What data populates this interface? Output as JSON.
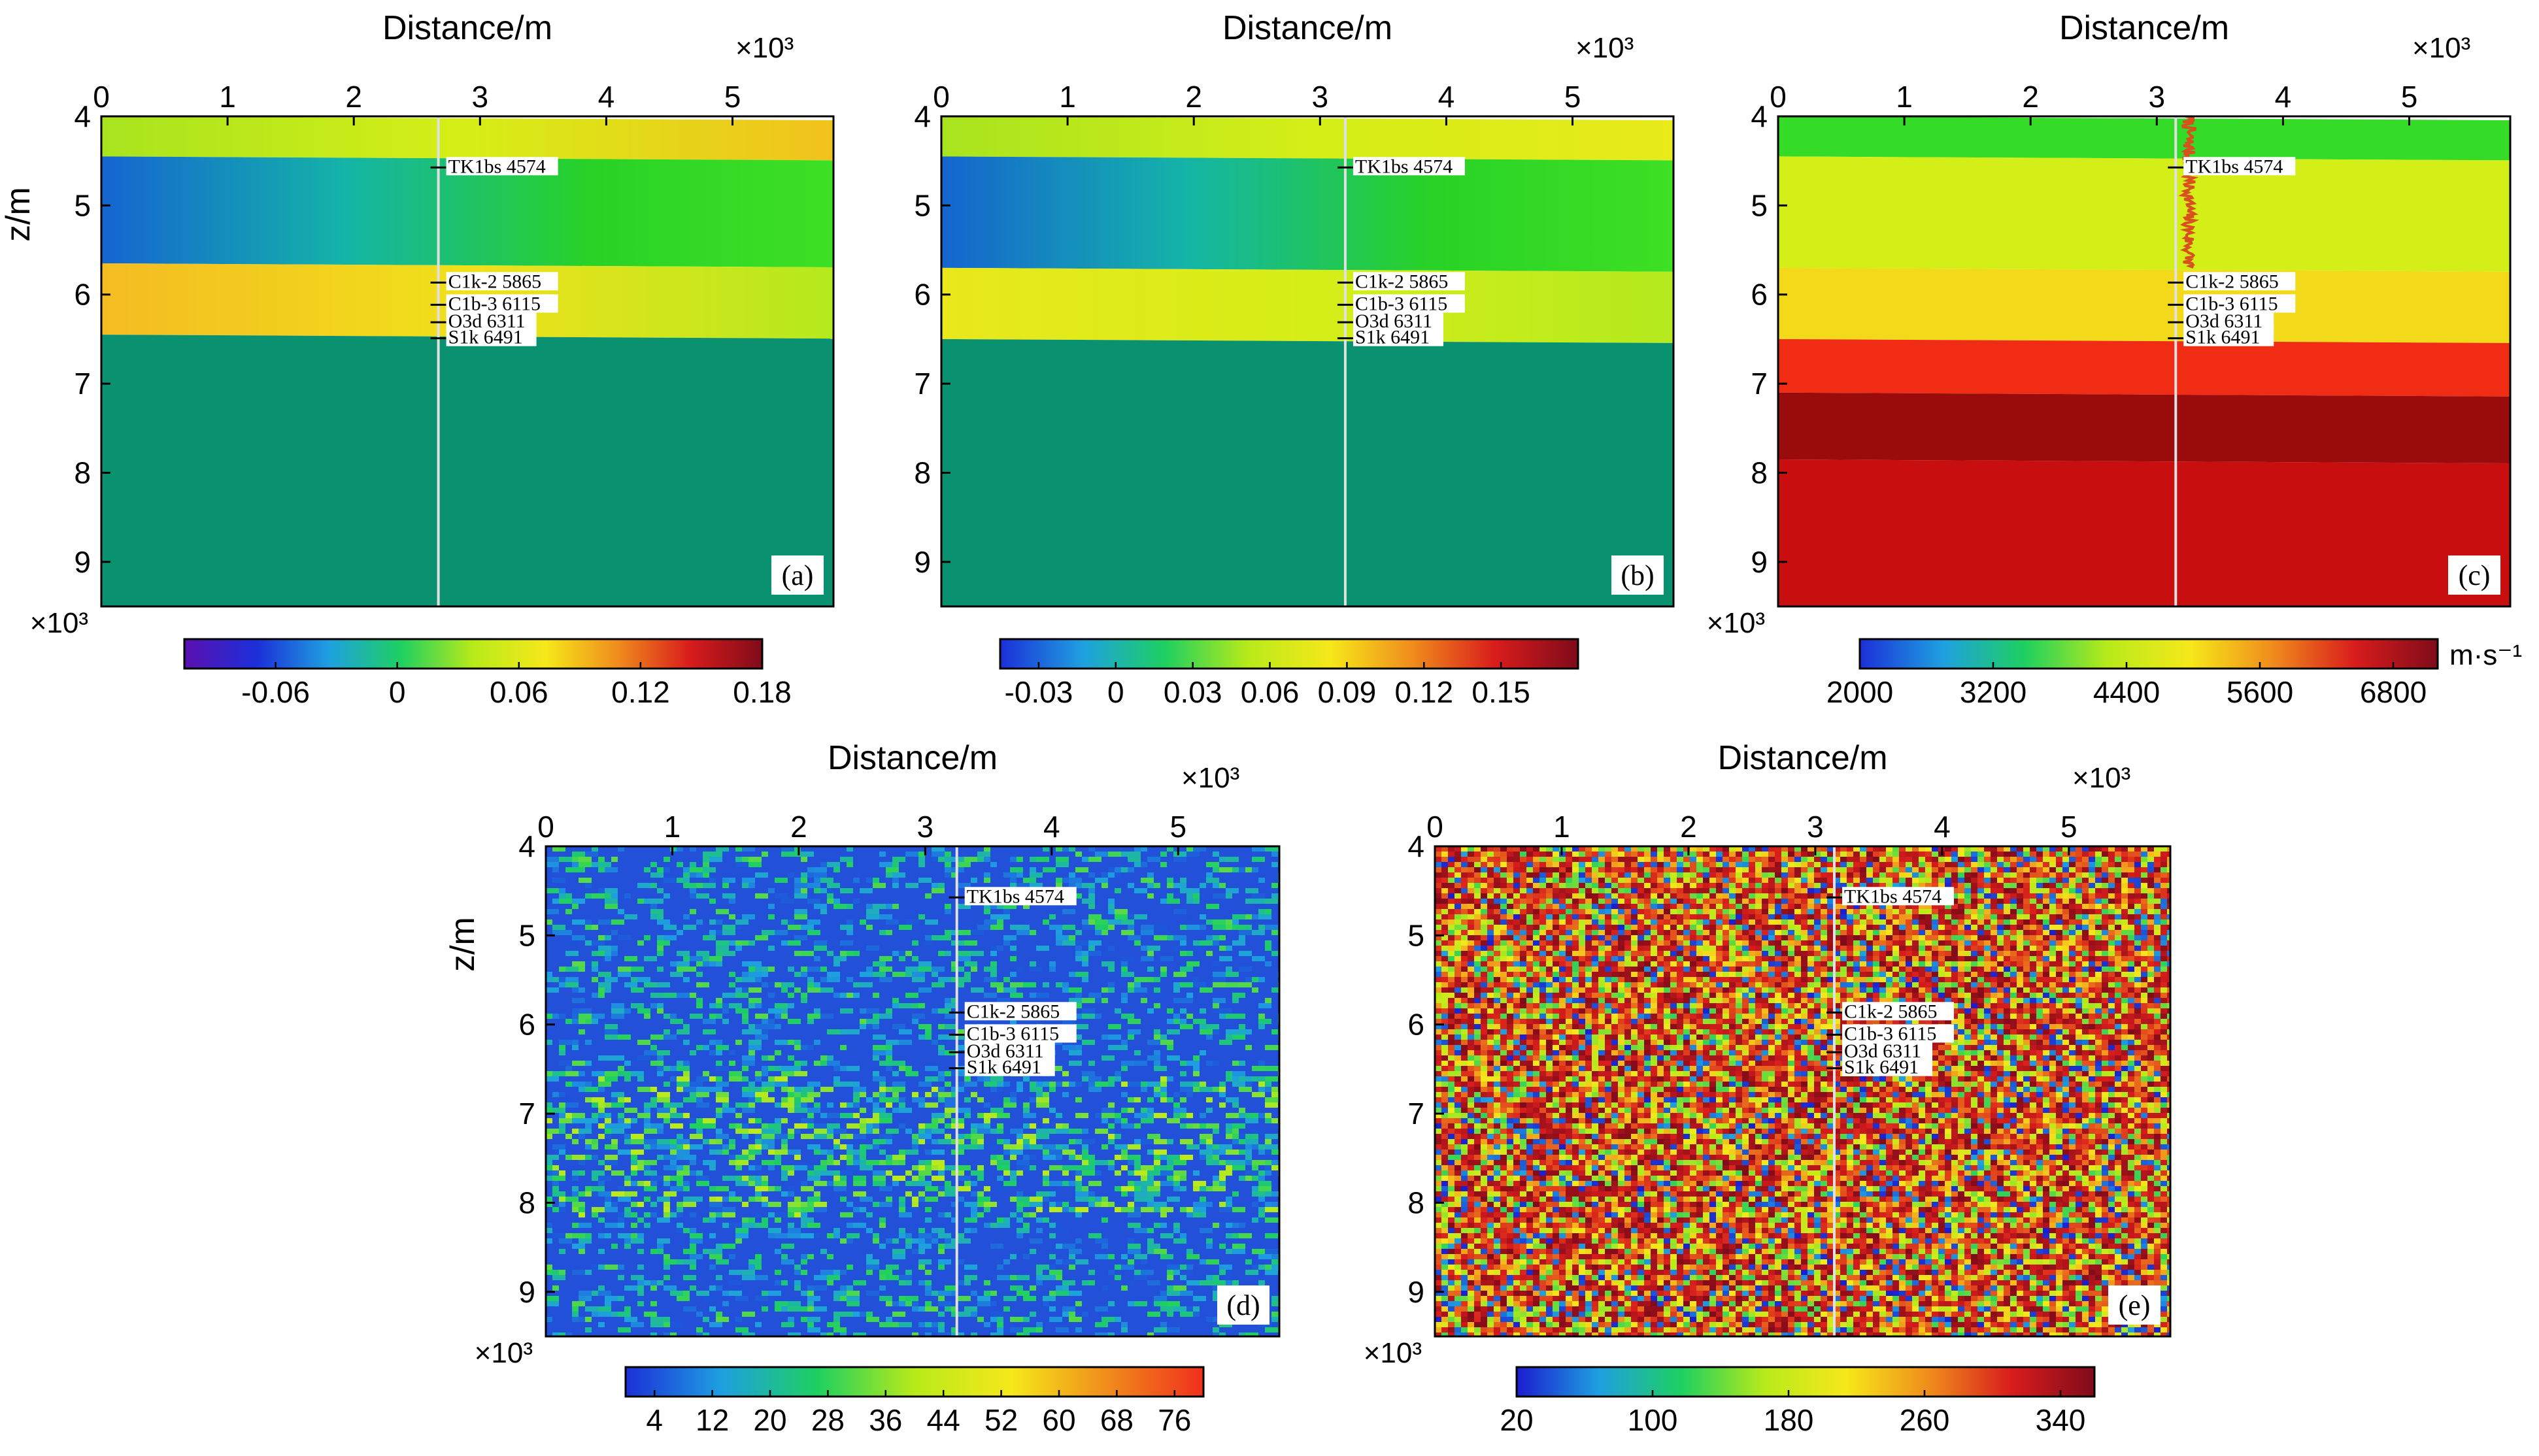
{
  "chart_data": [
    {
      "id": "a",
      "type": "heatmap",
      "panel_label": "(a)",
      "xlabel": "Distance/m",
      "x_multiplier": "×10³",
      "x_ticks": [
        "0",
        "1",
        "2",
        "3",
        "4",
        "5"
      ],
      "xlim": [
        0,
        5.8
      ],
      "ylabel": "z/m",
      "y_multiplier": "×10³",
      "y_ticks": [
        "4",
        "5",
        "6",
        "7",
        "8",
        "9"
      ],
      "ylim": [
        4,
        9.5
      ],
      "well_x": 2.67,
      "layers": [
        {
          "z_top": 4.0,
          "z_bottom": 4.45,
          "grad": [
            "#a8e41e",
            "#d6ee16",
            "#f2c21c"
          ]
        },
        {
          "z_top": 4.45,
          "z_bottom": 5.65,
          "grad": [
            "#1565d0",
            "#14b4a8",
            "#28d226",
            "#3ee024"
          ]
        },
        {
          "z_top": 5.65,
          "z_bottom": 6.45,
          "grad": [
            "#f4bc22",
            "#f0e01a",
            "#b4ea1e"
          ]
        },
        {
          "z_top": 6.45,
          "z_bottom": 9.5,
          "grad": [
            "#0a9170",
            "#0a9170"
          ]
        }
      ],
      "markers": [
        {
          "label": "TK1bs 4574",
          "z": 4.574
        },
        {
          "label": "C1k-2 5865",
          "z": 5.865
        },
        {
          "label": "C1b-3 6115",
          "z": 6.115
        },
        {
          "label": "O3d 6311",
          "z": 6.311
        },
        {
          "label": "S1k 6491",
          "z": 6.491
        }
      ],
      "colorbar": {
        "ticks": [
          "-0.06",
          "0",
          "0.06",
          "0.12",
          "0.18"
        ],
        "tick_values": [
          -0.06,
          0,
          0.06,
          0.12,
          0.18
        ],
        "range": [
          -0.105,
          0.18
        ],
        "colors": [
          "#5a10b0",
          "#1c2fd8",
          "#1ea0e0",
          "#1ed060",
          "#b8ea1a",
          "#f6e81a",
          "#f08c1c",
          "#d81c1c",
          "#800b1a"
        ],
        "unit": ""
      }
    },
    {
      "id": "b",
      "type": "heatmap",
      "panel_label": "(b)",
      "xlabel": "Distance/m",
      "x_multiplier": "×10³",
      "x_ticks": [
        "0",
        "1",
        "2",
        "3",
        "4",
        "5"
      ],
      "xlim": [
        0,
        5.8
      ],
      "ylabel": "",
      "y_multiplier": "",
      "y_ticks": [
        "4",
        "5",
        "6",
        "7",
        "8",
        "9"
      ],
      "ylim": [
        4,
        9.5
      ],
      "well_x": 3.2,
      "layers": [
        {
          "z_top": 4.0,
          "z_bottom": 4.45,
          "grad": [
            "#a8e41e",
            "#d4ee18",
            "#e8ea1a"
          ]
        },
        {
          "z_top": 4.45,
          "z_bottom": 5.7,
          "grad": [
            "#1565d0",
            "#14b4a8",
            "#28d226",
            "#3ee024"
          ]
        },
        {
          "z_top": 5.7,
          "z_bottom": 6.5,
          "grad": [
            "#e8e81c",
            "#d6ee18",
            "#b4ea1e"
          ]
        },
        {
          "z_top": 6.5,
          "z_bottom": 9.5,
          "grad": [
            "#0a9170",
            "#0a9170"
          ]
        }
      ],
      "markers": [
        {
          "label": "TK1bs 4574",
          "z": 4.574
        },
        {
          "label": "C1k-2 5865",
          "z": 5.865
        },
        {
          "label": "C1b-3 6115",
          "z": 6.115
        },
        {
          "label": "O3d 6311",
          "z": 6.311
        },
        {
          "label": "S1k 6491",
          "z": 6.491
        }
      ],
      "colorbar": {
        "ticks": [
          "-0.03",
          "0",
          "0.03",
          "0.06",
          "0.09",
          "0.12",
          "0.15"
        ],
        "tick_values": [
          -0.03,
          0,
          0.03,
          0.06,
          0.09,
          0.12,
          0.15
        ],
        "range": [
          -0.045,
          0.18
        ],
        "colors": [
          "#1c2fd8",
          "#1ea0e0",
          "#1ed060",
          "#b8ea1a",
          "#f6e81a",
          "#f08c1c",
          "#d81c1c",
          "#800b1a"
        ],
        "unit": ""
      }
    },
    {
      "id": "c",
      "type": "heatmap",
      "panel_label": "(c)",
      "xlabel": "Distance/m",
      "x_multiplier": "×10³",
      "x_ticks": [
        "0",
        "1",
        "2",
        "3",
        "4",
        "5"
      ],
      "xlim": [
        0,
        5.8
      ],
      "ylabel": "",
      "y_multiplier": "×10³",
      "y_ticks": [
        "4",
        "5",
        "6",
        "7",
        "8",
        "9"
      ],
      "ylim": [
        4,
        9.5
      ],
      "well_x": 3.15,
      "layers": [
        {
          "z_top": 4.0,
          "z_bottom": 4.45,
          "grad": [
            "#34dc28",
            "#34dc28"
          ]
        },
        {
          "z_top": 4.45,
          "z_bottom": 5.7,
          "grad": [
            "#d4ee18",
            "#d4ee18"
          ]
        },
        {
          "z_top": 5.7,
          "z_bottom": 6.5,
          "grad": [
            "#f2da1a",
            "#f2da1a"
          ]
        },
        {
          "z_top": 6.5,
          "z_bottom": 7.1,
          "grad": [
            "#f02c14",
            "#f02c14"
          ]
        },
        {
          "z_top": 7.1,
          "z_bottom": 7.85,
          "grad": [
            "#9a0c0c",
            "#9a0c0c"
          ]
        },
        {
          "z_top": 7.85,
          "z_bottom": 9.5,
          "grad": [
            "#c80e0e",
            "#c80e0e"
          ]
        }
      ],
      "markers": [
        {
          "label": "TK1bs 4574",
          "z": 4.574
        },
        {
          "label": "C1k-2 5865",
          "z": 5.865
        },
        {
          "label": "C1b-3 6115",
          "z": 6.115
        },
        {
          "label": "O3d 6311",
          "z": 6.311
        },
        {
          "label": "S1k 6491",
          "z": 6.491
        }
      ],
      "well_log": true,
      "colorbar": {
        "ticks": [
          "2000",
          "3200",
          "4400",
          "5600",
          "6800"
        ],
        "tick_values": [
          2000,
          3200,
          4400,
          5600,
          6800
        ],
        "range": [
          2000,
          7200
        ],
        "colors": [
          "#1c2fd8",
          "#1ea0e0",
          "#1ed060",
          "#b8ea1a",
          "#f6e81a",
          "#f08c1c",
          "#d81c1c",
          "#800b1a"
        ],
        "unit": "m·s⁻¹"
      }
    },
    {
      "id": "d",
      "type": "heatmap",
      "panel_label": "(d)",
      "xlabel": "Distance/m",
      "x_multiplier": "×10³",
      "x_ticks": [
        "0",
        "1",
        "2",
        "3",
        "4",
        "5"
      ],
      "xlim": [
        0,
        5.8
      ],
      "ylabel": "z/m",
      "y_multiplier": "×10³",
      "y_ticks": [
        "4",
        "5",
        "6",
        "7",
        "8",
        "9"
      ],
      "ylim": [
        4,
        9.5
      ],
      "well_x": 3.25,
      "markers": [
        {
          "label": "TK1bs 4574",
          "z": 4.574
        },
        {
          "label": "C1k-2 5865",
          "z": 5.865
        },
        {
          "label": "C1b-3 6115",
          "z": 6.115
        },
        {
          "label": "O3d 6311",
          "z": 6.311
        },
        {
          "label": "S1k 6491",
          "z": 6.491
        }
      ],
      "texture": "sparse",
      "colorbar": {
        "ticks": [
          "4",
          "12",
          "20",
          "28",
          "36",
          "44",
          "52",
          "60",
          "68",
          "76"
        ],
        "tick_values": [
          4,
          12,
          20,
          28,
          36,
          44,
          52,
          60,
          68,
          76
        ],
        "range": [
          0,
          80
        ],
        "colors": [
          "#1c2fd8",
          "#1ea0e0",
          "#1ed060",
          "#b8ea1a",
          "#f6e81a",
          "#f08c1c",
          "#f0301c"
        ],
        "unit": ""
      }
    },
    {
      "id": "e",
      "type": "heatmap",
      "panel_label": "(e)",
      "xlabel": "Distance/m",
      "x_multiplier": "×10³",
      "x_ticks": [
        "0",
        "1",
        "2",
        "3",
        "4",
        "5"
      ],
      "xlim": [
        0,
        5.8
      ],
      "ylabel": "",
      "y_multiplier": "×10³",
      "y_ticks": [
        "4",
        "5",
        "6",
        "7",
        "8",
        "9"
      ],
      "ylim": [
        4,
        9.5
      ],
      "well_x": 3.15,
      "markers": [
        {
          "label": "TK1bs 4574",
          "z": 4.574
        },
        {
          "label": "C1k-2 5865",
          "z": 5.865
        },
        {
          "label": "C1b-3 6115",
          "z": 6.115
        },
        {
          "label": "O3d 6311",
          "z": 6.311
        },
        {
          "label": "S1k 6491",
          "z": 6.491
        }
      ],
      "texture": "dense",
      "colorbar": {
        "ticks": [
          "20",
          "100",
          "180",
          "260",
          "340"
        ],
        "tick_values": [
          20,
          100,
          180,
          260,
          340
        ],
        "range": [
          20,
          360
        ],
        "colors": [
          "#1c1cd0",
          "#1ea0e0",
          "#1ed060",
          "#b8ea1a",
          "#f6e81a",
          "#f08c1c",
          "#d81c1c",
          "#800b1a"
        ],
        "unit": ""
      }
    }
  ]
}
